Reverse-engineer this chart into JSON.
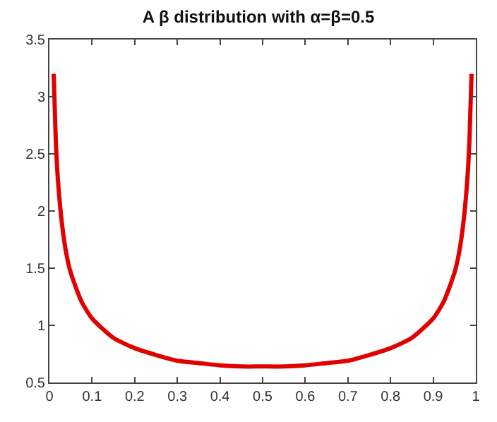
{
  "chart_data": {
    "type": "line",
    "title": "A β distribution with α=β=0.5",
    "x": [
      0.01,
      0.015,
      0.02,
      0.03,
      0.04,
      0.05,
      0.075,
      0.1,
      0.15,
      0.2,
      0.25,
      0.3,
      0.35,
      0.4,
      0.45,
      0.5,
      0.55,
      0.6,
      0.65,
      0.7,
      0.75,
      0.8,
      0.85,
      0.9,
      0.925,
      0.95,
      0.96,
      0.97,
      0.98,
      0.985,
      0.99
    ],
    "series": [
      {
        "color": "#e00000",
        "values": [
          3.2,
          2.61,
          2.27,
          1.87,
          1.62,
          1.46,
          1.21,
          1.06,
          0.89,
          0.8,
          0.74,
          0.69,
          0.67,
          0.65,
          0.64,
          0.64,
          0.64,
          0.65,
          0.67,
          0.69,
          0.74,
          0.8,
          0.89,
          1.06,
          1.21,
          1.46,
          1.62,
          1.87,
          2.27,
          2.61,
          3.2
        ]
      }
    ],
    "xlim": [
      0,
      1
    ],
    "xticks": [
      0,
      0.1,
      0.2,
      0.3,
      0.4,
      0.5,
      0.6,
      0.7,
      0.8,
      0.9,
      1
    ],
    "ylim": [
      0.5,
      3.5
    ],
    "yticks": [
      0.5,
      1,
      1.5,
      2,
      2.5,
      3,
      3.5
    ],
    "grid": false,
    "legend": false,
    "marker": "none",
    "line_style": "solid"
  }
}
